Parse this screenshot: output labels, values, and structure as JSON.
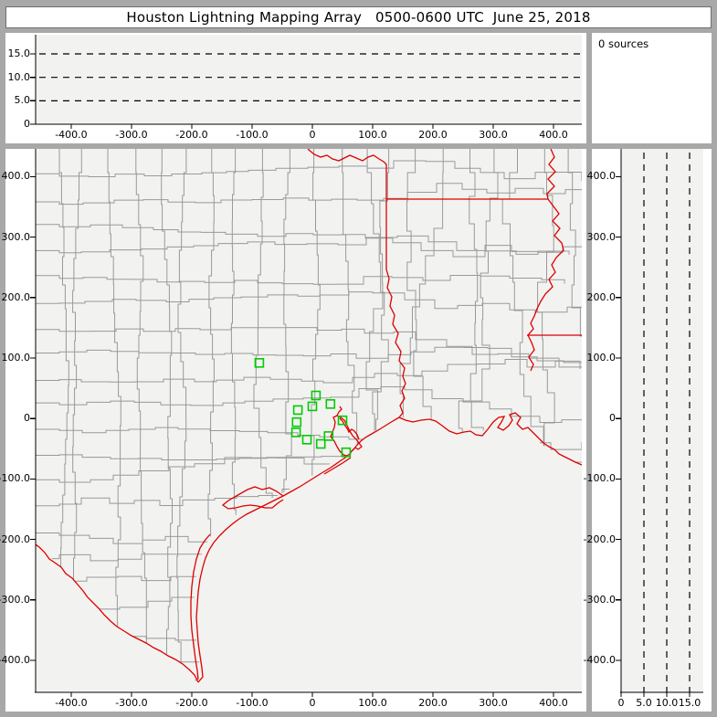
{
  "title": "Houston Lightning Mapping Array   0500-0600 UTC  June 25, 2018",
  "sources_panel": {
    "label": "0 sources"
  },
  "colors": {
    "window_background": "#a8a8a8",
    "panel_background": "#ffffff",
    "plot_background": "#f2f2f0",
    "axis": "#000000",
    "reference_line": "#000000",
    "county_border": "#999999",
    "state_border": "#dd0000",
    "station_marker": "#00cc00"
  },
  "chart_data": [
    {
      "id": "ew_altitude_panel",
      "type": "scatter",
      "x": {
        "lim": [
          -459,
          447
        ],
        "ticks": [
          -400,
          -300,
          -200,
          -100,
          0,
          100,
          200,
          300,
          400
        ],
        "tick_labels": [
          "-400.0",
          "-300.0",
          "-200.0",
          "-100.0",
          "0",
          "100.0",
          "200.0",
          "300.0",
          "400.0"
        ]
      },
      "y": {
        "lim": [
          0,
          19.1
        ],
        "ticks": [
          0,
          5,
          10,
          15
        ],
        "tick_labels": [
          "0",
          "5.0",
          "10.0",
          "15.0"
        ]
      },
      "reference_lines_y": [
        5,
        10,
        15
      ],
      "points": []
    },
    {
      "id": "plan_view_map",
      "type": "scatter",
      "x": {
        "lim": [
          -459,
          447
        ],
        "ticks": [
          -400,
          -300,
          -200,
          -100,
          0,
          100,
          200,
          300,
          400
        ],
        "tick_labels": [
          "-400.0",
          "-300.0",
          "-200.0",
          "-100.0",
          "0",
          "100.0",
          "200.0",
          "300.0",
          "400.0"
        ]
      },
      "y": {
        "lim": [
          -453,
          446
        ],
        "ticks": [
          -400,
          -300,
          -200,
          -100,
          0,
          100,
          200,
          300,
          400
        ],
        "tick_labels": [
          "-400.0",
          "-300.0",
          "-200.0",
          "-100.0",
          "0",
          "100.0",
          "200.0",
          "300.0",
          "400.0"
        ]
      },
      "stations_km": [
        [
          -88,
          92
        ],
        [
          6,
          38
        ],
        [
          0,
          20
        ],
        [
          30,
          24
        ],
        [
          -24,
          14
        ],
        [
          -26,
          -6
        ],
        [
          -27,
          -23
        ],
        [
          50,
          -3
        ],
        [
          27,
          -29
        ],
        [
          -9,
          -35
        ],
        [
          14,
          -42
        ],
        [
          56,
          -56
        ]
      ],
      "points": []
    },
    {
      "id": "ns_altitude_panel",
      "type": "scatter",
      "x": {
        "lim": [
          0,
          18
        ],
        "ticks": [
          0,
          5,
          10,
          15
        ],
        "tick_labels": [
          "0",
          "5.0",
          "10.0",
          "15.0"
        ]
      },
      "y": {
        "lim": [
          -453,
          446
        ],
        "ticks": [
          -400,
          -300,
          -200,
          -100,
          0,
          100,
          200,
          300,
          400
        ],
        "tick_labels": [
          "-400.0",
          "-300.0",
          "-200.0",
          "-100.0",
          "0",
          "100.0",
          "200.0",
          "300.0",
          "400.0"
        ]
      },
      "reference_lines_x": [
        5,
        10,
        15
      ],
      "points": []
    }
  ]
}
